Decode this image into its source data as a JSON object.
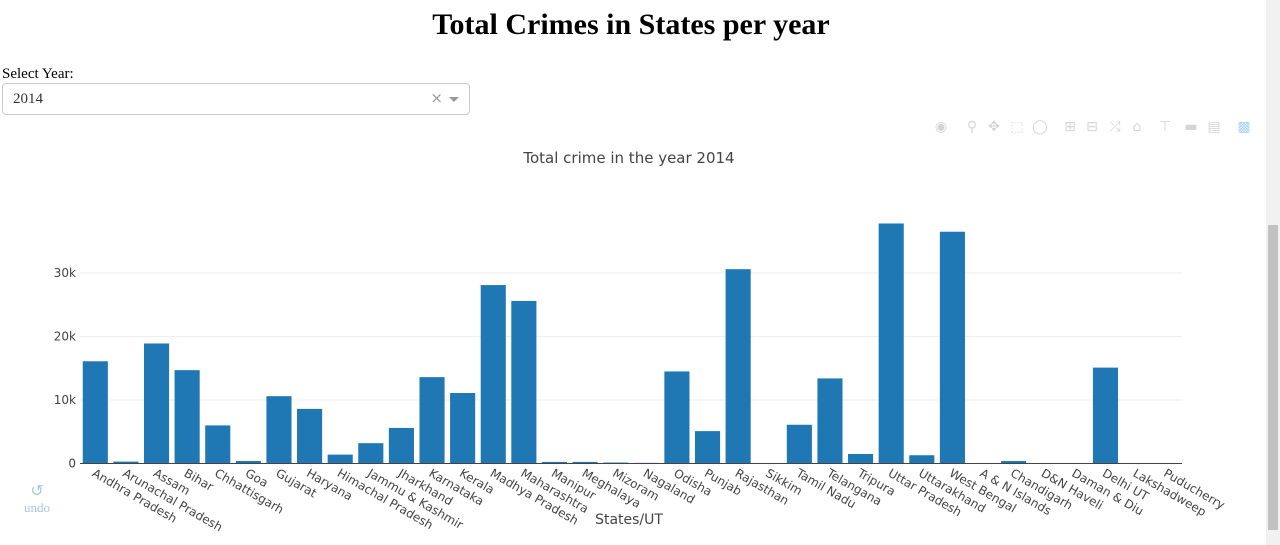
{
  "page": {
    "title": "Total Crimes in States per year",
    "select_label": "Select Year:",
    "selected_year": "2014",
    "clear_glyph": "×",
    "undo_label": "undo"
  },
  "modebar": {
    "icons": [
      "camera-icon",
      "zoom-icon",
      "pan-icon",
      "box-select-icon",
      "lasso-icon",
      "zoom-in-icon",
      "zoom-out-icon",
      "autoscale-icon",
      "reset-axes-icon",
      "spike-lines-icon",
      "hover-closest-icon",
      "hover-compare-icon",
      "plotly-logo-icon"
    ]
  },
  "chart_data": {
    "type": "bar",
    "title": "Total crime in the year 2014",
    "xlabel": "States/UT",
    "ylabel": "",
    "ylim": [
      0,
      42000
    ],
    "yticks": [
      0,
      10000,
      20000,
      30000
    ],
    "ytick_labels": [
      "0",
      "10k",
      "20k",
      "30k"
    ],
    "grid": true,
    "legend": "none",
    "color": "#1f77b4",
    "categories": [
      "Andhra Pradesh",
      "Arunachal Pradesh",
      "Assam",
      "Bihar",
      "Chhattisgarh",
      "Goa",
      "Gujarat",
      "Haryana",
      "Himachal Pradesh",
      "Jammu & Kashmir",
      "Jharkhand",
      "Karnataka",
      "Kerala",
      "Madhya Pradesh",
      "Maharashtra",
      "Manipur",
      "Meghalaya",
      "Mizoram",
      "Nagaland",
      "Odisha",
      "Punjab",
      "Rajasthan",
      "Sikkim",
      "Tamil Nadu",
      "Telangana",
      "Tripura",
      "Uttar Pradesh",
      "Uttarakhand",
      "West Bengal",
      "A & N Islands",
      "Chandigarh",
      "D&N Haveli",
      "Daman & Diu",
      "Delhi UT",
      "Lakshadweep",
      "Puducherry"
    ],
    "values": [
      16100,
      300,
      18900,
      14700,
      6000,
      400,
      10600,
      8600,
      1400,
      3200,
      5600,
      13600,
      11100,
      28100,
      25600,
      250,
      250,
      150,
      100,
      14500,
      5100,
      30600,
      80,
      6100,
      13400,
      1500,
      37800,
      1300,
      36500,
      50,
      400,
      30,
      30,
      15100,
      10,
      60
    ]
  }
}
